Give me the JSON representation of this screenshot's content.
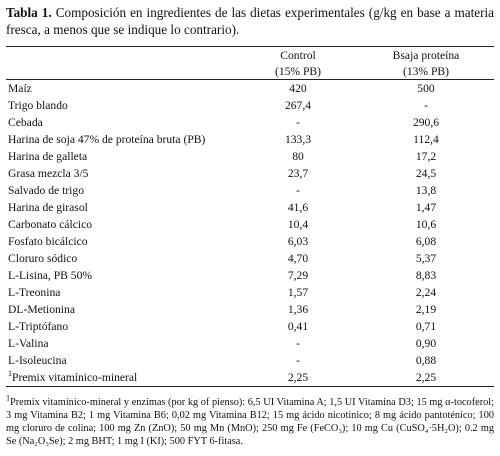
{
  "caption": {
    "label": "Tabla 1.",
    "text": "Composición en ingredientes de las dietas experimentales (g/kg en base a materia fresca, a menos que se indique lo contrario)."
  },
  "table": {
    "columns": [
      {
        "name": "Control",
        "sub": "(15% PB)"
      },
      {
        "name": "Bsaja proteína",
        "sub": "(13% PB)"
      }
    ],
    "rows": [
      [
        "Maíz",
        "420",
        "500"
      ],
      [
        "Trigo blando",
        "267,4",
        "-"
      ],
      [
        "Cebada",
        "-",
        "290,6"
      ],
      [
        "Harina de soja 47% de proteína bruta (PB)",
        "133,3",
        "112,4"
      ],
      [
        "Harina de galleta",
        "80",
        "17,2"
      ],
      [
        "Grasa mezcla 3/5",
        "23,7",
        "24,5"
      ],
      [
        "Salvado de trigo",
        "-",
        "13,8"
      ],
      [
        "Harina de girasol",
        "41,6",
        "1,47"
      ],
      [
        "Carbonato cálcico",
        "10,4",
        "10,6"
      ],
      [
        "Fosfato bicálcico",
        "6,03",
        "6,08"
      ],
      [
        "Cloruro sódico",
        "4,70",
        "5,37"
      ],
      [
        "L-Lisina, PB 50%",
        "7,29",
        "8,83"
      ],
      [
        "L-Treonina",
        "1,57",
        "2,24"
      ],
      [
        "DL-Metionina",
        "1,36",
        "2,19"
      ],
      [
        "L-Triptófano",
        "0,41",
        "0,71"
      ],
      [
        "L-Valina",
        "-",
        "0,90"
      ],
      [
        "L-Isoleucina",
        "-",
        "0,88"
      ],
      [
        "Premix vitamínico-mineral",
        "2,25",
        "2,25"
      ]
    ],
    "footnote_row": 17
  },
  "footnote": {
    "mark": "1",
    "text": "Premix vitamínico-mineral y enzimas (por kg of pienso): 6,5 UI Vitamina A; 1,5 UI Vitamina D3; 15 mg α-tocoferol; 3 mg Vitamina B2; 1 mg Vitamina B6; 0,02 mg Vitamina B12; 15 mg ácido nicotínico; 8 mg ácido pantoténico; 100 mg cloruro de colina; 100 mg Zn (ZnO); 50 mg Mn (MnO); 250 mg Fe (FeCO₃); 10 mg Cu (CuSO₄·5H₂O); 0.2 mg Se (Na₂O₃Se); 2 mg BHT; 1 mg I (KI); 500 FYT 6-fitasa."
  }
}
